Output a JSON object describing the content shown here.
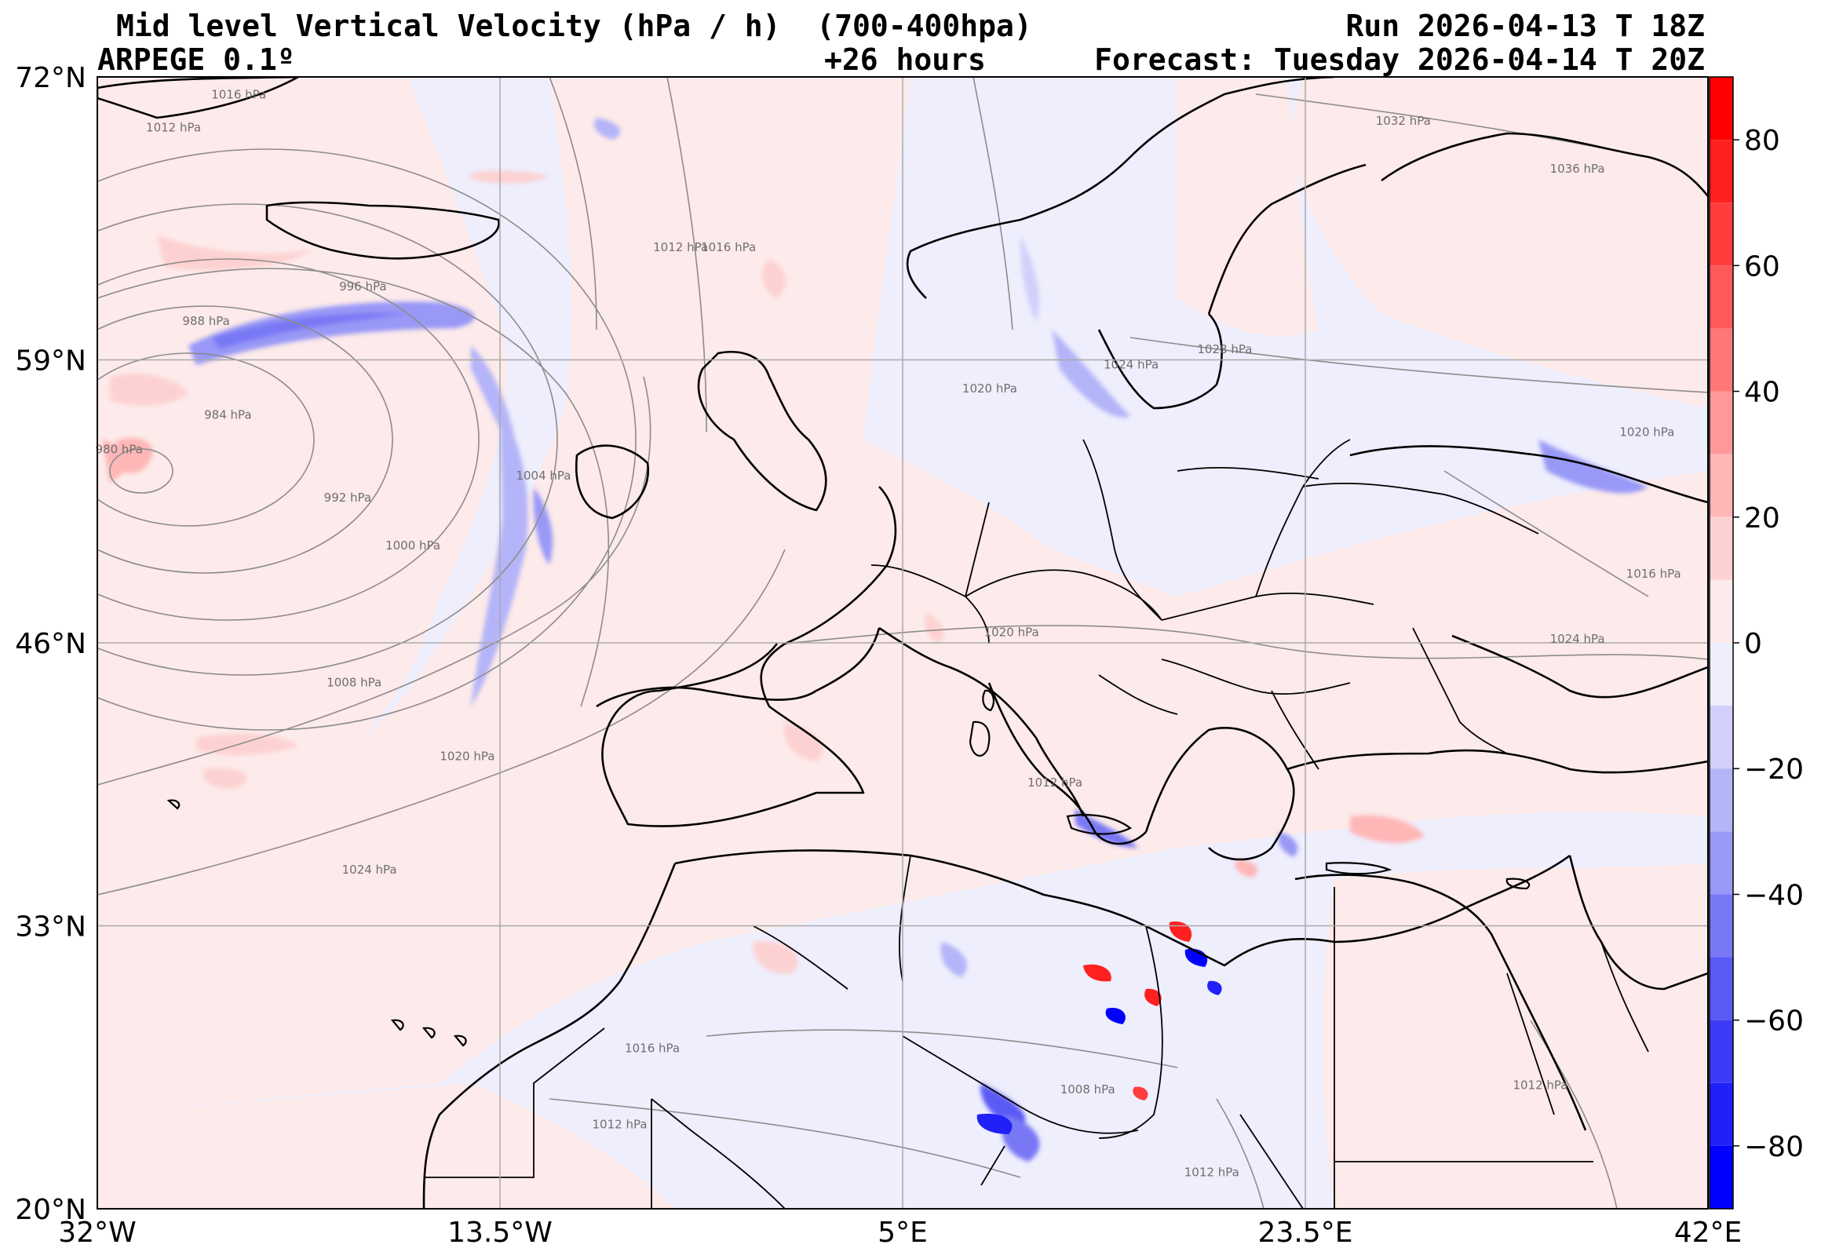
{
  "header": {
    "title": "Mid level Vertical Velocity (hPa / h)  (700-400hpa)",
    "model": "ARPEGE 0.1º",
    "lead_time": "+26 hours",
    "run": "Run 2026-04-13 T 18Z",
    "forecast": "Forecast: Tuesday 2026-04-14 T 20Z"
  },
  "map": {
    "projection": "equirectangular",
    "lon_range": [
      -32,
      42
    ],
    "lat_range": [
      20,
      72
    ],
    "lon_ticks": [
      {
        "value": -32,
        "label": "32°W"
      },
      {
        "value": -13.5,
        "label": "13.5°W"
      },
      {
        "value": 5,
        "label": "5°E"
      },
      {
        "value": 23.5,
        "label": "23.5°E"
      },
      {
        "value": 42,
        "label": "42°E"
      }
    ],
    "lat_ticks": [
      {
        "value": 72,
        "label": "72°N"
      },
      {
        "value": 59,
        "label": "59°N"
      },
      {
        "value": 46,
        "label": "46°N"
      },
      {
        "value": 33,
        "label": "33°N"
      },
      {
        "value": 20,
        "label": "20°N"
      }
    ],
    "grid": true,
    "colors": {
      "neutral_positive": "#fdeaea",
      "neutral_negative": "#eeeefd",
      "coast": "#000000",
      "isobar": "#8c8c8c",
      "grid": "#a9a9a9"
    },
    "isobar_labels": [
      {
        "text": "1016 hPa",
        "lon": -25.5,
        "lat": 71.0
      },
      {
        "text": "1012 hPa",
        "lon": -28.5,
        "lat": 69.5
      },
      {
        "text": "996 hPa",
        "lon": -19.8,
        "lat": 62.2
      },
      {
        "text": "988 hPa",
        "lon": -27.0,
        "lat": 60.6
      },
      {
        "text": "984 hPa",
        "lon": -26.0,
        "lat": 56.3
      },
      {
        "text": "980 hPa",
        "lon": -31.0,
        "lat": 54.7
      },
      {
        "text": "992 hPa",
        "lon": -20.5,
        "lat": 52.5
      },
      {
        "text": "1000 hPa",
        "lon": -17.5,
        "lat": 50.3
      },
      {
        "text": "1004 hPa",
        "lon": -11.5,
        "lat": 53.5
      },
      {
        "text": "1008 hPa",
        "lon": -20.2,
        "lat": 44.0
      },
      {
        "text": "1012 hPa",
        "lon": -5.2,
        "lat": 64.0
      },
      {
        "text": "1016 hPa",
        "lon": -3.0,
        "lat": 64.0
      },
      {
        "text": "1020 hPa",
        "lon": -15.0,
        "lat": 40.6
      },
      {
        "text": "1024 hPa",
        "lon": -19.5,
        "lat": 35.4
      },
      {
        "text": "1020 hPa",
        "lon": 9.0,
        "lat": 57.5
      },
      {
        "text": "1024 hPa",
        "lon": 15.5,
        "lat": 58.6
      },
      {
        "text": "1028 hPa",
        "lon": 19.8,
        "lat": 59.3
      },
      {
        "text": "1032 hPa",
        "lon": 28.0,
        "lat": 69.8
      },
      {
        "text": "1036 hPa",
        "lon": 36.0,
        "lat": 67.6
      },
      {
        "text": "1020 hPa",
        "lon": 39.2,
        "lat": 55.5
      },
      {
        "text": "1016 hPa",
        "lon": 39.5,
        "lat": 49.0
      },
      {
        "text": "1024 hPa",
        "lon": 36.0,
        "lat": 46.0
      },
      {
        "text": "1020 hPa",
        "lon": 10.0,
        "lat": 46.3
      },
      {
        "text": "1012 hPa",
        "lon": 12.0,
        "lat": 39.4
      },
      {
        "text": "1016 hPa",
        "lon": -6.5,
        "lat": 27.2
      },
      {
        "text": "1012 hPa",
        "lon": -8.0,
        "lat": 23.7
      },
      {
        "text": "1008 hPa",
        "lon": 13.5,
        "lat": 25.3
      },
      {
        "text": "1012 hPa",
        "lon": 34.3,
        "lat": 25.5
      },
      {
        "text": "1012 hPa",
        "lon": 19.2,
        "lat": 21.5
      }
    ]
  },
  "colorbar": {
    "range": [
      -90,
      90
    ],
    "ticks": [
      {
        "value": 80,
        "label": "80"
      },
      {
        "value": 60,
        "label": "60"
      },
      {
        "value": 40,
        "label": "40"
      },
      {
        "value": 20,
        "label": "20"
      },
      {
        "value": 0,
        "label": "0"
      },
      {
        "value": -20,
        "label": "−20"
      },
      {
        "value": -40,
        "label": "−40"
      },
      {
        "value": -60,
        "label": "−60"
      },
      {
        "value": -80,
        "label": "−80"
      }
    ],
    "bands": [
      {
        "from": 80,
        "to": 90,
        "color": "#ff0000"
      },
      {
        "from": 70,
        "to": 80,
        "color": "#ff2020"
      },
      {
        "from": 60,
        "to": 70,
        "color": "#ff3d3d"
      },
      {
        "from": 50,
        "to": 60,
        "color": "#ff5a5a"
      },
      {
        "from": 40,
        "to": 50,
        "color": "#ff7878"
      },
      {
        "from": 30,
        "to": 40,
        "color": "#ff9898"
      },
      {
        "from": 20,
        "to": 30,
        "color": "#ffb6b6"
      },
      {
        "from": 10,
        "to": 20,
        "color": "#fdd1d1"
      },
      {
        "from": 0,
        "to": 10,
        "color": "#fdeaea"
      },
      {
        "from": -10,
        "to": 0,
        "color": "#eeeefd"
      },
      {
        "from": -20,
        "to": -10,
        "color": "#d0d0fb"
      },
      {
        "from": -30,
        "to": -20,
        "color": "#b4b4f9"
      },
      {
        "from": -40,
        "to": -30,
        "color": "#9898f7"
      },
      {
        "from": -50,
        "to": -40,
        "color": "#7878f5"
      },
      {
        "from": -60,
        "to": -50,
        "color": "#5a5af5"
      },
      {
        "from": -70,
        "to": -60,
        "color": "#3c3cf6"
      },
      {
        "from": -80,
        "to": -70,
        "color": "#2020f8"
      },
      {
        "from": -90,
        "to": -80,
        "color": "#0000ff"
      }
    ]
  }
}
